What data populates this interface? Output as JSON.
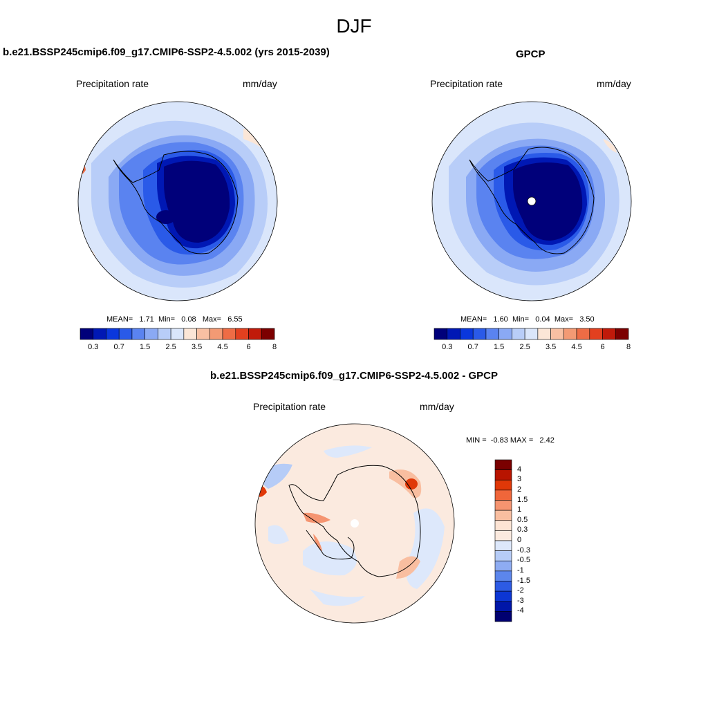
{
  "season": "DJF",
  "panels": [
    {
      "title": "b.e21.BSSP245cmip6.f09_g17.CMIP6-SSP2-4.5.002 (yrs 2015-2039)",
      "variable": "Precipitation rate",
      "units": "mm/day",
      "stats": {
        "mean_label": "MEAN=",
        "mean": "1.71",
        "min_label": "Min=",
        "min": "0.08",
        "max_label": "Max=",
        "max": "6.55"
      }
    },
    {
      "title": "GPCP",
      "variable": "Precipitation rate",
      "units": "mm/day",
      "stats": {
        "mean_label": "MEAN=",
        "mean": "1.60",
        "min_label": "Min=",
        "min": "0.04",
        "max_label": "Max=",
        "max": "3.50"
      }
    }
  ],
  "diff": {
    "title": "b.e21.BSSP245cmip6.f09_g17.CMIP6-SSP2-4.5.002 - GPCP",
    "variable": "Precipitation rate",
    "units": "mm/day",
    "stats": {
      "min_label": "MIN =",
      "min": "-0.83",
      "max_label": "MAX =",
      "max": "2.42"
    }
  },
  "abs_colorbar": {
    "colors": [
      "#00007a",
      "#0018b4",
      "#0a37dc",
      "#2a5ae8",
      "#5a83f0",
      "#8aa9f4",
      "#b8cdf8",
      "#dae6fb",
      "#fbe6d7",
      "#f8c0a3",
      "#f39a74",
      "#ee6c45",
      "#e2401f",
      "#c01a0a",
      "#7c0000"
    ],
    "tick_labels": [
      "0.3",
      "0.7",
      "1.5",
      "2.5",
      "3.5",
      "4.5",
      "6",
      "8"
    ]
  },
  "diff_colorbar": {
    "colors": [
      "#7a0000",
      "#b81400",
      "#e03808",
      "#f0663a",
      "#f59470",
      "#f9bea0",
      "#fde4d4",
      "#fbeadf",
      "#dde8fb",
      "#b6ccf7",
      "#8eacf2",
      "#5c86ec",
      "#2d5be4",
      "#0c36d4",
      "#0016a8",
      "#000070"
    ],
    "tick_labels": [
      "4",
      "3",
      "2",
      "1.5",
      "1",
      "0.5",
      "0.3",
      "0",
      "-0.3",
      "-0.5",
      "-1",
      "-1.5",
      "-2",
      "-3",
      "-4"
    ]
  }
}
